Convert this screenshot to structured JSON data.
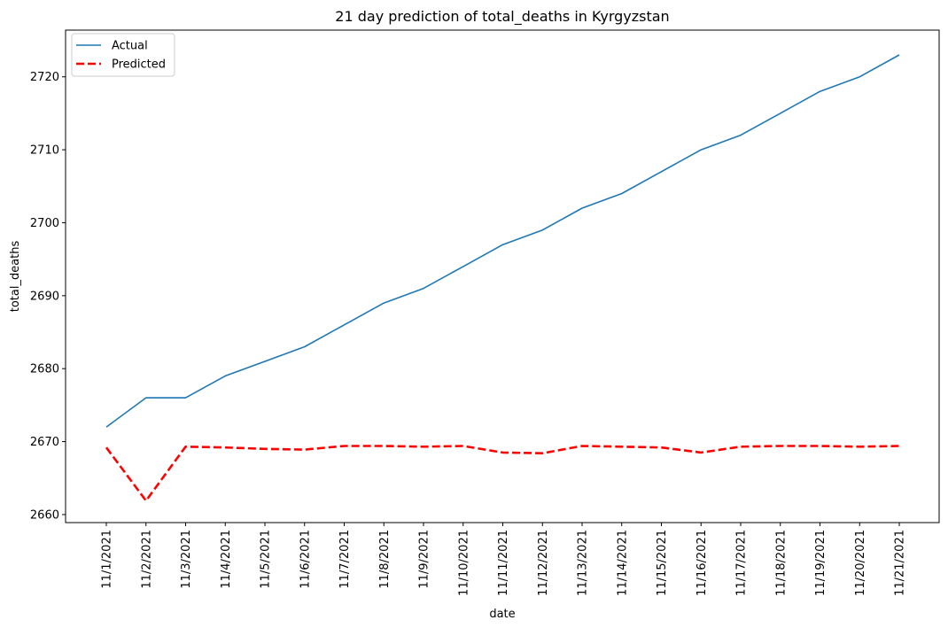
{
  "chart_data": {
    "type": "line",
    "title": "21 day prediction of total_deaths in Kyrgyzstan",
    "xlabel": "date",
    "ylabel": "total_deaths",
    "categories": [
      "11/1/2021",
      "11/2/2021",
      "11/3/2021",
      "11/4/2021",
      "11/5/2021",
      "11/6/2021",
      "11/7/2021",
      "11/8/2021",
      "11/9/2021",
      "11/10/2021",
      "11/11/2021",
      "11/12/2021",
      "11/13/2021",
      "11/14/2021",
      "11/15/2021",
      "11/16/2021",
      "11/17/2021",
      "11/18/2021",
      "11/19/2021",
      "11/20/2021",
      "11/21/2021"
    ],
    "yticks": [
      2660,
      2670,
      2680,
      2690,
      2700,
      2710,
      2720
    ],
    "ylim": [
      2658.9,
      2726.4
    ],
    "grid": false,
    "legend_position": "top-left",
    "series": [
      {
        "name": "Actual",
        "color": "#1f77b4",
        "style": "solid",
        "values": [
          2672,
          2676,
          2676,
          2679,
          2681,
          2683,
          2686,
          2689,
          2691,
          2694,
          2697,
          2699,
          2702,
          2704,
          2707,
          2710,
          2712,
          2715,
          2718,
          2720,
          2723
        ]
      },
      {
        "name": "Predicted",
        "color": "#ff0000",
        "style": "dashed",
        "values": [
          2669.2,
          2661.9,
          2669.3,
          2669.2,
          2669.0,
          2668.9,
          2669.4,
          2669.4,
          2669.3,
          2669.4,
          2668.5,
          2668.4,
          2669.4,
          2669.3,
          2669.2,
          2668.5,
          2669.3,
          2669.4,
          2669.4,
          2669.3,
          2669.4
        ]
      }
    ]
  }
}
